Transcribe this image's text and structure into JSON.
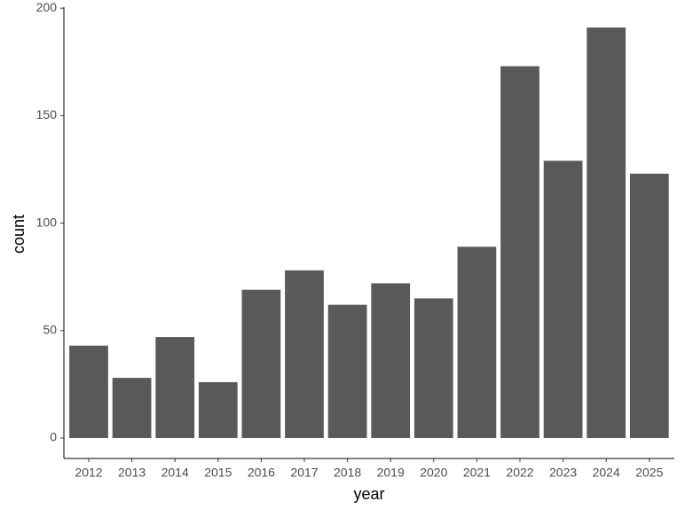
{
  "chart_data": {
    "type": "bar",
    "x_label": "year",
    "y_label": "count",
    "categories": [
      "2012",
      "2013",
      "2014",
      "2015",
      "2016",
      "2017",
      "2018",
      "2019",
      "2020",
      "2021",
      "2022",
      "2023",
      "2024",
      "2025"
    ],
    "values": [
      43,
      28,
      47,
      26,
      69,
      78,
      62,
      72,
      65,
      89,
      173,
      129,
      191,
      123
    ],
    "color": "#595959",
    "ylim": [
      -9.5,
      200.5
    ],
    "yticks": [
      0,
      50,
      100,
      150,
      200
    ],
    "grid": false
  }
}
